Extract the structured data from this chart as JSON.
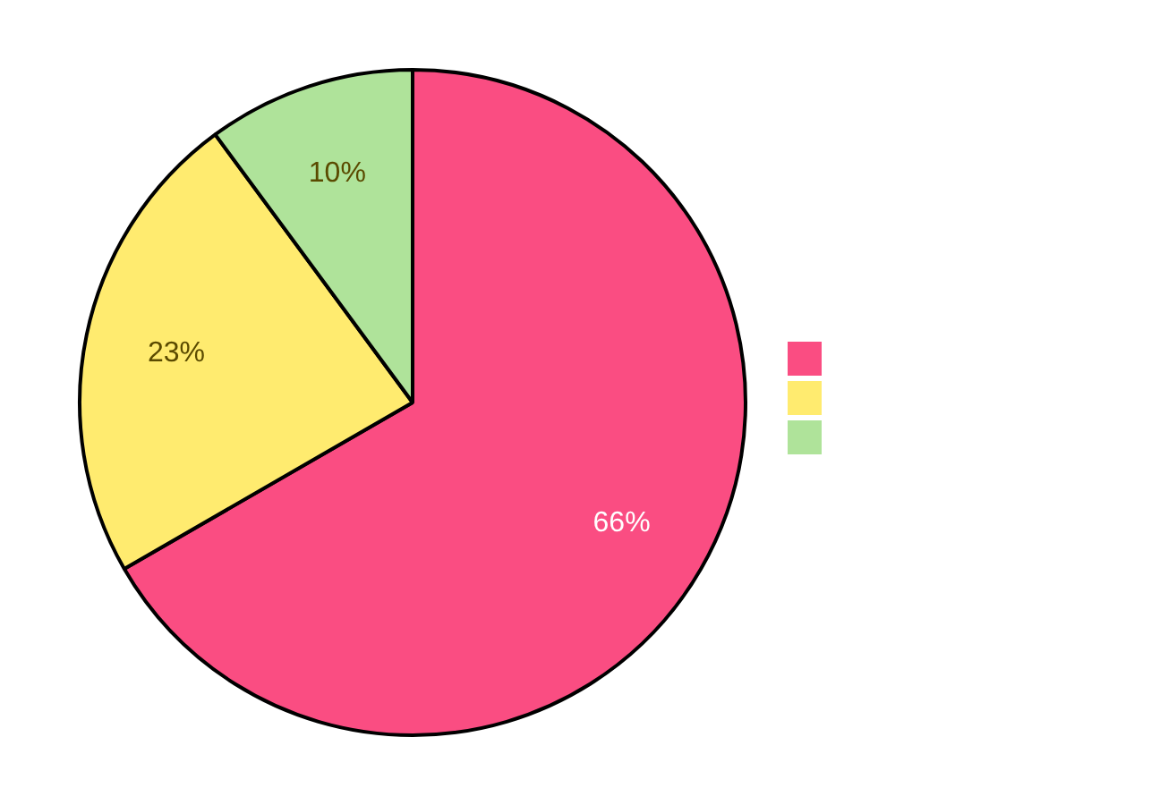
{
  "chart_data": {
    "type": "pie",
    "categories": [
      null,
      null,
      null
    ],
    "values": [
      66,
      23,
      10
    ],
    "value_labels": [
      "66%",
      "23%",
      "10%"
    ],
    "colors": [
      "#fa4d82",
      "#ffeb6f",
      "#afe39a"
    ]
  }
}
